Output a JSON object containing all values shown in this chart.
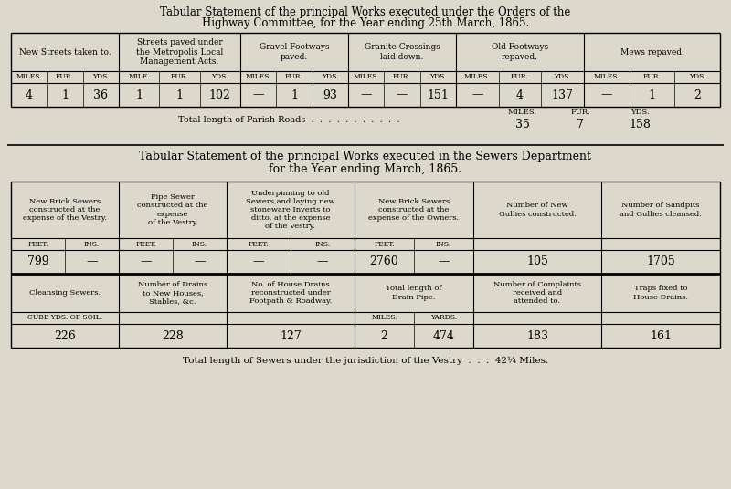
{
  "bg_color": "#ddd8cc",
  "title1_line1": "Tabular Statement of the principal Works executed under the Orders of the",
  "title1_line2": "Highway Committee, for the Year ending 25th March, 1865.",
  "title2_line1": "Tabular Statement of the principal Works executed in the Sewers Department",
  "title2_line2": "for the Year ending March, 1865.",
  "table1_headers": [
    "New Streets taken to.",
    "Streets paved under\nthe Metropolis Local\nManagement Acts.",
    "Gravel Footways\npaved.",
    "Granite Crossings\nlaid down.",
    "Old Footways\nrepaved.",
    "Mews repaved."
  ],
  "table1_sub_headers": [
    [
      "MILES.",
      "FUR.",
      "YDS."
    ],
    [
      "MILE.",
      "FUR.",
      "YDS."
    ],
    [
      "MILES.",
      "FUR.",
      "YDS."
    ],
    [
      "MILES.",
      "FUR.",
      "YDS."
    ],
    [
      "MILES.",
      "FUR.",
      "YDS."
    ],
    [
      "MILES.",
      "FUR.",
      "YDS."
    ]
  ],
  "table1_data": [
    [
      "4",
      "1",
      "36"
    ],
    [
      "1",
      "1",
      "102"
    ],
    [
      "—",
      "1",
      "93"
    ],
    [
      "—",
      "—",
      "151"
    ],
    [
      "—",
      "4",
      "137"
    ],
    [
      "—",
      "1",
      "2"
    ]
  ],
  "total_parish_text": "Total length of Parish Roads  .  .  .  .  .  .  .  .  .  .  .",
  "total_parish_labels": [
    "MILES.",
    "FUR.",
    "YDS."
  ],
  "total_parish_values": [
    "35",
    "7",
    "158"
  ],
  "sewer_headers_row1": [
    "New Brick Sewers\nconstructed at the\nexpense of the Vestry.",
    "Pipe Sewer\nconstructed at the\nexpense\nof the Vestry.",
    "Underpinning to old\nSewers,and laying new\nstoneware Inverts to\nditto, at the expense\nof the Vestry.",
    "New Brick Sewers\nconstructed at the\nexpense of the Owners.",
    "Number of New\nGullies constructed.",
    "Number of Sandpits\nand Gullies cleansed."
  ],
  "sewer_sub_headers_row1": [
    [
      "FEET.",
      "INS."
    ],
    [
      "FEET.",
      "INS."
    ],
    [
      "FEET.",
      "INS."
    ],
    [
      "FEET.",
      "INS."
    ],
    null,
    null
  ],
  "sewer_data_row1": [
    [
      "799",
      "—"
    ],
    [
      "—",
      "—"
    ],
    [
      "—",
      "—"
    ],
    [
      "2760",
      "—"
    ],
    "105",
    "1705"
  ],
  "sewer_headers_row2": [
    "Cleansing Sewers.",
    "Number of Drains\nto New Houses,\nStables, &c.",
    "No. of House Drains\nreconstructed under\nFootpath & Roadway.",
    "Total length of\nDrain Pipe.",
    "Number of Complaints\nreceived and\nattended to.",
    "Traps fixed to\nHouse Drains."
  ],
  "sewer_sub_headers_row2": [
    "CUBE YDS. OF SOIL.",
    null,
    null,
    [
      "MILES.",
      "YARDS."
    ],
    null,
    null
  ],
  "sewer_data_row2": [
    "226",
    "228",
    "127",
    [
      "2",
      "474"
    ],
    "183",
    "161"
  ],
  "total_sewers": "Total length of Sewers under the jurisdiction of the Vestry  .  .  .  42¼ Miles."
}
